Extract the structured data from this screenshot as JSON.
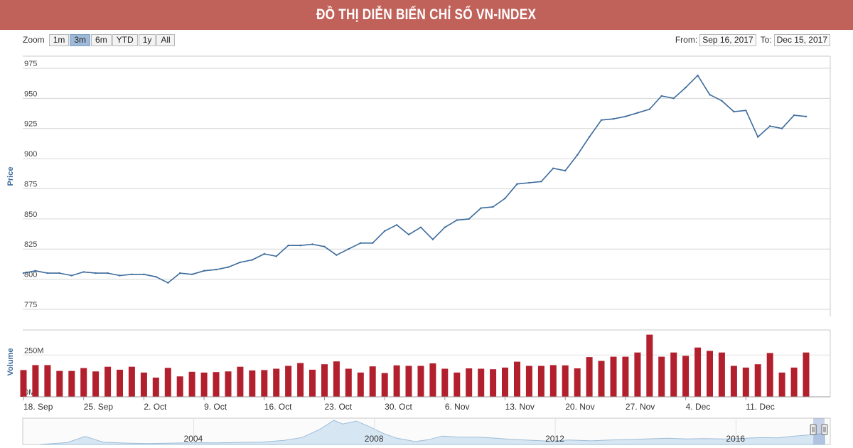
{
  "banner": {
    "title": "ĐỒ THỊ DIỄN BIẾN CHỈ SỐ VN-INDEX"
  },
  "toolbar": {
    "zoom_label": "Zoom",
    "buttons": [
      "1m",
      "3m",
      "6m",
      "YTD",
      "1y",
      "All"
    ],
    "active_button": "3m",
    "from_label": "From:",
    "from_value": "Sep 16, 2017",
    "to_label": "To:",
    "to_value": "Dec 15, 2017"
  },
  "colors": {
    "price_line": "#3b6a9c",
    "volume_bar": "#b21f2d",
    "banner": "#c0625a",
    "navigator_area": "#d7e6f3"
  },
  "chart_data": [
    {
      "type": "line",
      "ylabel": "Price",
      "ylim": [
        775,
        985
      ],
      "yticks": [
        775,
        800,
        825,
        850,
        875,
        900,
        925,
        950,
        975
      ],
      "grid": true,
      "xlim": [
        0,
        66
      ],
      "x_ticks": [
        {
          "label": "18. Sep",
          "x": 0
        },
        {
          "label": "25. Sep",
          "x": 5
        },
        {
          "label": "2. Oct",
          "x": 10
        },
        {
          "label": "9. Oct",
          "x": 15
        },
        {
          "label": "16. Oct",
          "x": 20
        },
        {
          "label": "23. Oct",
          "x": 25
        },
        {
          "label": "30. Oct",
          "x": 30
        },
        {
          "label": "6. Nov",
          "x": 35
        },
        {
          "label": "13. Nov",
          "x": 40
        },
        {
          "label": "20. Nov",
          "x": 45
        },
        {
          "label": "27. Nov",
          "x": 50
        },
        {
          "label": "4. Dec",
          "x": 55
        },
        {
          "label": "11. Dec",
          "x": 60
        }
      ],
      "values": [
        805,
        807,
        805,
        805,
        803,
        806,
        805,
        805,
        803,
        804,
        804,
        802,
        797,
        805,
        804,
        807,
        808,
        810,
        814,
        816,
        821,
        819,
        828,
        828,
        829,
        827,
        820,
        825,
        830,
        830,
        840,
        845,
        837,
        843,
        833,
        843,
        849,
        850,
        859,
        860,
        867,
        879,
        880,
        881,
        892,
        890,
        903,
        918,
        932,
        933,
        935,
        938,
        941,
        952,
        950,
        959,
        969,
        953,
        948,
        939,
        940,
        918,
        927,
        925,
        936,
        935
      ]
    },
    {
      "type": "bar",
      "ylabel": "Volume",
      "yticks": [
        {
          "label": "0M",
          "value": 0
        },
        {
          "label": "250M",
          "value": 250
        }
      ],
      "ylim": [
        0,
        400
      ],
      "values": [
        160,
        190,
        190,
        155,
        155,
        172,
        152,
        180,
        162,
        180,
        145,
        115,
        173,
        122,
        150,
        145,
        148,
        152,
        180,
        158,
        160,
        168,
        185,
        202,
        162,
        195,
        212,
        168,
        145,
        182,
        142,
        188,
        185,
        185,
        200,
        168,
        145,
        170,
        168,
        165,
        175,
        210,
        185,
        185,
        190,
        188,
        170,
        238,
        215,
        240,
        240,
        265,
        372,
        240,
        265,
        245,
        295,
        275,
        265,
        185,
        175,
        195,
        262,
        145,
        175,
        265
      ]
    },
    {
      "type": "area",
      "role": "navigator",
      "x_ticks": [
        {
          "label": "2004",
          "x": 2004
        },
        {
          "label": "2008",
          "x": 2008
        },
        {
          "label": "2012",
          "x": 2012
        },
        {
          "label": "2016",
          "x": 2016
        }
      ],
      "xlim": [
        2000.5,
        2017.96
      ],
      "points": [
        [
          2000.6,
          0
        ],
        [
          2001.2,
          25
        ],
        [
          2001.6,
          110
        ],
        [
          2002.0,
          30
        ],
        [
          2002.5,
          18
        ],
        [
          2003.0,
          12
        ],
        [
          2003.5,
          18
        ],
        [
          2004.0,
          24
        ],
        [
          2004.5,
          22
        ],
        [
          2005.0,
          28
        ],
        [
          2005.5,
          32
        ],
        [
          2006.0,
          55
        ],
        [
          2006.4,
          95
        ],
        [
          2006.8,
          210
        ],
        [
          2007.1,
          330
        ],
        [
          2007.3,
          280
        ],
        [
          2007.6,
          320
        ],
        [
          2007.9,
          240
        ],
        [
          2008.2,
          150
        ],
        [
          2008.5,
          85
        ],
        [
          2008.9,
          40
        ],
        [
          2009.2,
          65
        ],
        [
          2009.5,
          115
        ],
        [
          2009.9,
          100
        ],
        [
          2010.3,
          100
        ],
        [
          2010.7,
          85
        ],
        [
          2011.0,
          70
        ],
        [
          2011.5,
          55
        ],
        [
          2011.9,
          45
        ],
        [
          2012.3,
          60
        ],
        [
          2012.8,
          50
        ],
        [
          2013.2,
          60
        ],
        [
          2013.6,
          65
        ],
        [
          2014.0,
          75
        ],
        [
          2014.5,
          85
        ],
        [
          2014.9,
          75
        ],
        [
          2015.3,
          80
        ],
        [
          2015.8,
          75
        ],
        [
          2016.2,
          85
        ],
        [
          2016.6,
          95
        ],
        [
          2016.9,
          90
        ],
        [
          2017.3,
          115
        ],
        [
          2017.7,
          135
        ],
        [
          2017.96,
          150
        ]
      ],
      "selected_range": [
        2017.71,
        2017.96
      ]
    }
  ]
}
